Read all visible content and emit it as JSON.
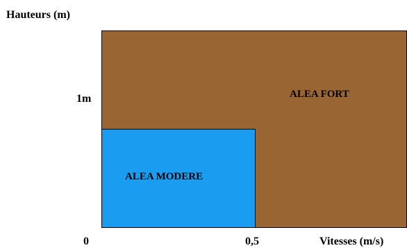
{
  "axes": {
    "y_title": "Hauteurs (m)",
    "x_title": "Vitesses (m/s)",
    "y_tick": "1m",
    "x_ticks": [
      "0",
      "0,5"
    ]
  },
  "zones": {
    "fort": {
      "label": "ALEA FORT",
      "color": "#996633"
    },
    "modere": {
      "label": "ALEA MODERE",
      "color": "#1a9cf0"
    }
  }
}
